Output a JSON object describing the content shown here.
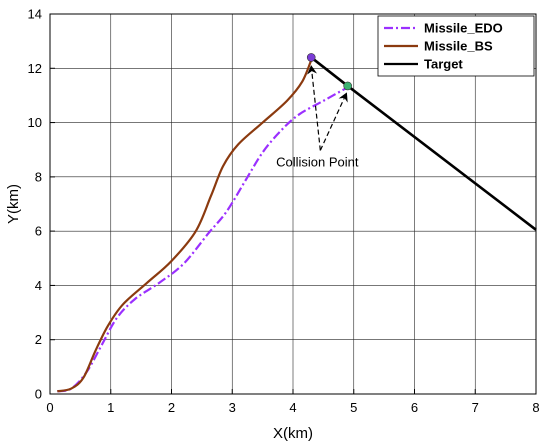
{
  "chart_data": {
    "type": "line",
    "title": "",
    "xlabel": "X(km)",
    "ylabel": "Y(km)",
    "xlim": [
      0,
      8
    ],
    "ylim": [
      0,
      14
    ],
    "xticks": [
      "0",
      "1",
      "2",
      "3",
      "4",
      "5",
      "6",
      "7",
      "8"
    ],
    "yticks": [
      "0",
      "2",
      "4",
      "6",
      "8",
      "10",
      "12",
      "14"
    ],
    "grid": true,
    "legend_position": "top-right",
    "series": [
      {
        "name": "Missile_EDO",
        "color": "#9b30ff",
        "style": "dash-dot",
        "points": [
          [
            0.12,
            0.1
          ],
          [
            0.35,
            0.2
          ],
          [
            0.6,
            0.8
          ],
          [
            0.85,
            1.8
          ],
          [
            1.1,
            2.8
          ],
          [
            1.4,
            3.5
          ],
          [
            1.8,
            4.1
          ],
          [
            2.2,
            4.8
          ],
          [
            2.6,
            5.9
          ],
          [
            2.9,
            6.7
          ],
          [
            3.2,
            7.8
          ],
          [
            3.5,
            8.9
          ],
          [
            3.8,
            9.7
          ],
          [
            4.1,
            10.3
          ],
          [
            4.5,
            10.8
          ],
          [
            4.9,
            11.3
          ]
        ]
      },
      {
        "name": "Missile_BS",
        "color": "#8b3a0f",
        "style": "solid",
        "points": [
          [
            0.12,
            0.1
          ],
          [
            0.35,
            0.2
          ],
          [
            0.55,
            0.6
          ],
          [
            0.75,
            1.6
          ],
          [
            0.95,
            2.5
          ],
          [
            1.2,
            3.3
          ],
          [
            1.6,
            4.1
          ],
          [
            2.0,
            4.9
          ],
          [
            2.4,
            6.0
          ],
          [
            2.65,
            7.3
          ],
          [
            2.85,
            8.4
          ],
          [
            3.1,
            9.2
          ],
          [
            3.5,
            10.0
          ],
          [
            3.9,
            10.8
          ],
          [
            4.15,
            11.5
          ],
          [
            4.3,
            12.3
          ]
        ]
      },
      {
        "name": "Target",
        "color": "#000000",
        "style": "solid",
        "points": [
          [
            4.3,
            12.4
          ],
          [
            4.9,
            11.35
          ],
          [
            8.0,
            6.05
          ]
        ]
      }
    ],
    "markers": [
      {
        "name": "edo-collision",
        "x": 4.9,
        "y": 11.35,
        "color": "#3cb371"
      },
      {
        "name": "bs-collision",
        "x": 4.3,
        "y": 12.4,
        "color": "#7a3cd6"
      }
    ],
    "annotation": {
      "text": "Collision Point",
      "x": 4.45,
      "y": 8.9,
      "targets": [
        [
          4.3,
          12.3
        ],
        [
          4.88,
          11.3
        ]
      ]
    }
  }
}
